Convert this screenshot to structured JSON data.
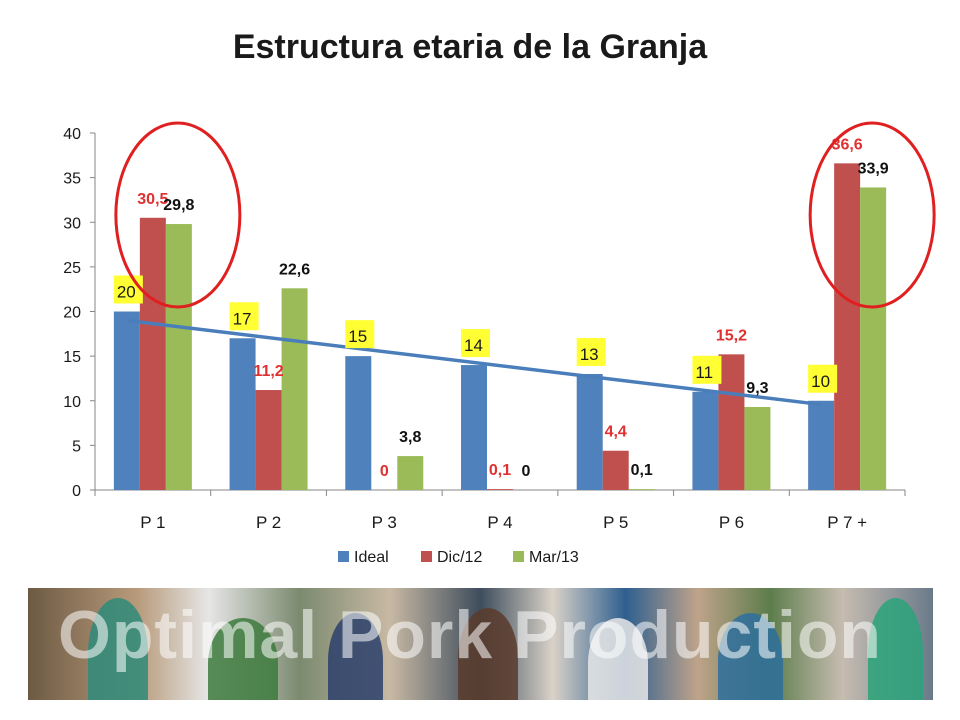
{
  "slide": {
    "title": "Estructura etaria de la Granja",
    "banner_text": "Optimal Pork Production"
  },
  "chart_data": {
    "type": "bar",
    "title": "Estructura etaria de la Granja",
    "categories": [
      "P 1",
      "P 2",
      "P 3",
      "P 4",
      "P 5",
      "P 6",
      "P 7 +"
    ],
    "series": [
      {
        "name": "Ideal",
        "color": "#4f81bd",
        "values": [
          20,
          17,
          15,
          14,
          13,
          11,
          10
        ],
        "labels": [
          "20",
          "17",
          "15",
          "14",
          "13",
          "11",
          "10"
        ],
        "label_style": "yellow-box"
      },
      {
        "name": "Dic/12",
        "color": "#c0504d",
        "values": [
          30.5,
          11.2,
          0,
          0.1,
          4.4,
          15.2,
          36.6
        ],
        "labels": [
          "30,5",
          "11,2",
          "0",
          "0,1",
          "4,4",
          "15,2",
          "36,6"
        ],
        "label_color": "#e03030"
      },
      {
        "name": "Mar/13",
        "color": "#9bbb59",
        "values": [
          29.8,
          22.6,
          3.8,
          0,
          0.1,
          9.3,
          33.9
        ],
        "labels": [
          "29,8",
          "22,6",
          "3,8",
          "0",
          "0,1",
          "9,3",
          "33,9"
        ],
        "label_color": "#111111"
      }
    ],
    "trendline": {
      "series": "Ideal",
      "color": "#4a7ebb"
    },
    "ylim": [
      0,
      40
    ],
    "yticks": [
      0,
      5,
      10,
      15,
      20,
      25,
      30,
      35,
      40
    ],
    "legend": "bottom",
    "grid": false,
    "highlights": [
      "P 1",
      "P 7 +"
    ],
    "highlight_color": "#e02020"
  }
}
